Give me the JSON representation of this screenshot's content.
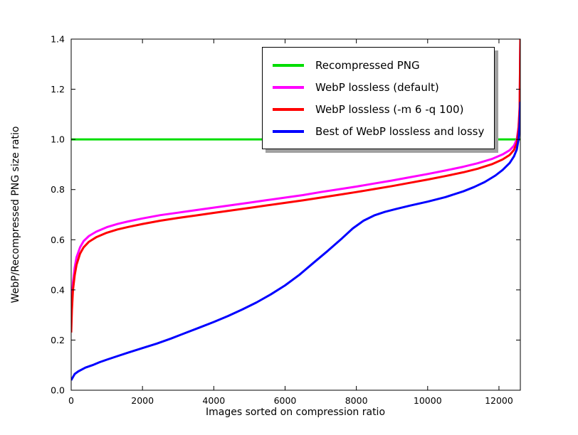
{
  "chart_data": {
    "type": "line",
    "title": "",
    "xlabel": "Images sorted on compression ratio",
    "ylabel": "WebP/Recompressed PNG size ratio",
    "xlim": [
      0,
      12600
    ],
    "ylim": [
      0.0,
      1.4
    ],
    "xticks": [
      0,
      2000,
      4000,
      6000,
      8000,
      10000,
      12000
    ],
    "yticks": [
      0.0,
      0.2,
      0.4,
      0.6,
      0.8,
      1.0,
      1.2,
      1.4
    ],
    "grid": false,
    "legend_position": "upper center-right",
    "legend_shadow": true,
    "axis_color": "#000000",
    "background_color": "#ffffff",
    "series": [
      {
        "name": "Recompressed PNG",
        "color": "#00dd00",
        "width": 3,
        "points": [
          [
            0,
            1.0
          ],
          [
            12600,
            1.0
          ]
        ]
      },
      {
        "name": "WebP lossless (default)",
        "color": "#ff00ff",
        "width": 3,
        "points": [
          [
            0,
            0.27
          ],
          [
            20,
            0.36
          ],
          [
            50,
            0.43
          ],
          [
            100,
            0.49
          ],
          [
            150,
            0.53
          ],
          [
            250,
            0.57
          ],
          [
            350,
            0.595
          ],
          [
            500,
            0.615
          ],
          [
            700,
            0.632
          ],
          [
            1000,
            0.65
          ],
          [
            1300,
            0.663
          ],
          [
            1600,
            0.673
          ],
          [
            2000,
            0.685
          ],
          [
            2500,
            0.698
          ],
          [
            3000,
            0.708
          ],
          [
            3500,
            0.718
          ],
          [
            4000,
            0.728
          ],
          [
            4500,
            0.738
          ],
          [
            5000,
            0.748
          ],
          [
            5500,
            0.758
          ],
          [
            6000,
            0.768
          ],
          [
            6500,
            0.778
          ],
          [
            7000,
            0.79
          ],
          [
            7500,
            0.801
          ],
          [
            8000,
            0.812
          ],
          [
            8500,
            0.824
          ],
          [
            9000,
            0.836
          ],
          [
            9500,
            0.849
          ],
          [
            10000,
            0.862
          ],
          [
            10500,
            0.876
          ],
          [
            11000,
            0.891
          ],
          [
            11400,
            0.905
          ],
          [
            11800,
            0.922
          ],
          [
            12100,
            0.94
          ],
          [
            12300,
            0.957
          ],
          [
            12420,
            0.975
          ],
          [
            12500,
            1.0
          ],
          [
            12550,
            1.05
          ],
          [
            12580,
            1.13
          ],
          [
            12600,
            1.4
          ]
        ]
      },
      {
        "name": "WebP lossless (-m 6 -q 100)",
        "color": "#ff0000",
        "width": 3,
        "points": [
          [
            0,
            0.23
          ],
          [
            20,
            0.32
          ],
          [
            50,
            0.4
          ],
          [
            100,
            0.46
          ],
          [
            150,
            0.5
          ],
          [
            250,
            0.545
          ],
          [
            350,
            0.57
          ],
          [
            500,
            0.592
          ],
          [
            700,
            0.61
          ],
          [
            1000,
            0.628
          ],
          [
            1300,
            0.641
          ],
          [
            1600,
            0.651
          ],
          [
            2000,
            0.663
          ],
          [
            2500,
            0.676
          ],
          [
            3000,
            0.687
          ],
          [
            3500,
            0.697
          ],
          [
            4000,
            0.707
          ],
          [
            4500,
            0.717
          ],
          [
            5000,
            0.727
          ],
          [
            5500,
            0.737
          ],
          [
            6000,
            0.747
          ],
          [
            6500,
            0.757
          ],
          [
            7000,
            0.768
          ],
          [
            7500,
            0.779
          ],
          [
            8000,
            0.79
          ],
          [
            8500,
            0.802
          ],
          [
            9000,
            0.814
          ],
          [
            9500,
            0.827
          ],
          [
            10000,
            0.84
          ],
          [
            10500,
            0.854
          ],
          [
            11000,
            0.869
          ],
          [
            11400,
            0.883
          ],
          [
            11800,
            0.901
          ],
          [
            12100,
            0.92
          ],
          [
            12300,
            0.938
          ],
          [
            12420,
            0.958
          ],
          [
            12500,
            0.985
          ],
          [
            12550,
            1.04
          ],
          [
            12580,
            1.12
          ],
          [
            12600,
            1.4
          ]
        ]
      },
      {
        "name": "Best of WebP lossless and lossy",
        "color": "#0000ff",
        "width": 3,
        "points": [
          [
            0,
            0.04
          ],
          [
            100,
            0.065
          ],
          [
            200,
            0.075
          ],
          [
            400,
            0.09
          ],
          [
            600,
            0.1
          ],
          [
            800,
            0.112
          ],
          [
            1000,
            0.122
          ],
          [
            1300,
            0.136
          ],
          [
            1600,
            0.15
          ],
          [
            2000,
            0.168
          ],
          [
            2400,
            0.186
          ],
          [
            2800,
            0.206
          ],
          [
            3200,
            0.228
          ],
          [
            3600,
            0.25
          ],
          [
            4000,
            0.272
          ],
          [
            4400,
            0.296
          ],
          [
            4800,
            0.322
          ],
          [
            5200,
            0.35
          ],
          [
            5600,
            0.382
          ],
          [
            6000,
            0.418
          ],
          [
            6400,
            0.46
          ],
          [
            6800,
            0.508
          ],
          [
            7200,
            0.556
          ],
          [
            7600,
            0.606
          ],
          [
            7900,
            0.645
          ],
          [
            8200,
            0.676
          ],
          [
            8500,
            0.697
          ],
          [
            8800,
            0.711
          ],
          [
            9100,
            0.722
          ],
          [
            9500,
            0.736
          ],
          [
            10000,
            0.752
          ],
          [
            10500,
            0.77
          ],
          [
            11000,
            0.793
          ],
          [
            11300,
            0.81
          ],
          [
            11600,
            0.83
          ],
          [
            11900,
            0.856
          ],
          [
            12100,
            0.878
          ],
          [
            12300,
            0.906
          ],
          [
            12420,
            0.932
          ],
          [
            12500,
            0.96
          ],
          [
            12550,
            1.0
          ],
          [
            12580,
            1.06
          ],
          [
            12600,
            1.15
          ]
        ]
      }
    ]
  }
}
